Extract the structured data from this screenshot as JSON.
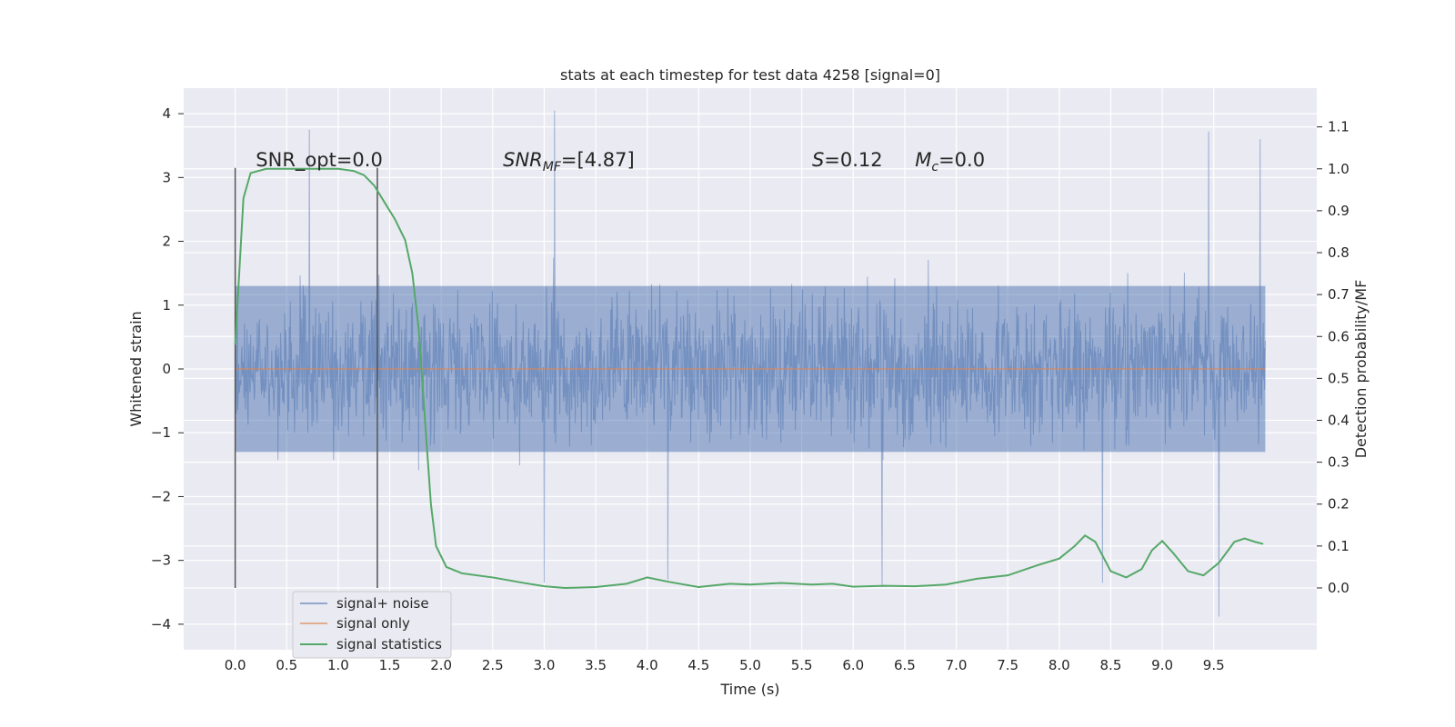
{
  "chart_data": {
    "type": "line",
    "title": "stats at each timestep for test data 4258 [signal=0]",
    "xlabel": "Time (s)",
    "ylabel_left": "Whitened strain",
    "ylabel_right": "Detection probability/MF",
    "xlim": [
      -0.5,
      10.5
    ],
    "ylim_left": [
      -4.4,
      4.4
    ],
    "ylim_right": [
      -0.1475,
      1.1925
    ],
    "x_ticks": [
      0.0,
      0.5,
      1.0,
      1.5,
      2.0,
      2.5,
      3.0,
      3.5,
      4.0,
      4.5,
      5.0,
      5.5,
      6.0,
      6.5,
      7.0,
      7.5,
      8.0,
      8.5,
      9.0,
      9.5
    ],
    "x_tick_labels": [
      "0.0",
      "0.5",
      "1.0",
      "1.5",
      "2.0",
      "2.5",
      "3.0",
      "3.5",
      "4.0",
      "4.5",
      "5.0",
      "5.5",
      "6.0",
      "6.5",
      "7.0",
      "7.5",
      "8.0",
      "8.5",
      "9.0",
      "9.5"
    ],
    "y_ticks_left": [
      4,
      3,
      2,
      1,
      0,
      -1,
      -2,
      -3,
      -4
    ],
    "y_tick_labels_left": [
      "4",
      "3",
      "2",
      "1",
      "0",
      "−1",
      "−2",
      "−3",
      "−4"
    ],
    "y_ticks_right": [
      1.1,
      1.0,
      0.9,
      0.8,
      0.7,
      0.6,
      0.5,
      0.4,
      0.3,
      0.2,
      0.1,
      0.0
    ],
    "y_tick_labels_right": [
      "1.1",
      "1.0",
      "0.9",
      "0.8",
      "0.7",
      "0.6",
      "0.5",
      "0.4",
      "0.3",
      "0.2",
      "0.1",
      "0.0"
    ],
    "grid": true,
    "legend_position": "lower-left",
    "series": [
      {
        "name": "signal+ noise",
        "color": "#4c72b0",
        "noise_duration": 10.0,
        "noise_bulk_range": [
          -1.3,
          1.3
        ],
        "notable_peaks": [
          {
            "x": 3.1,
            "y": 4.05
          },
          {
            "x": 9.45,
            "y": 3.72
          },
          {
            "x": 9.95,
            "y": 3.6
          },
          {
            "x": 0.72,
            "y": 3.75
          },
          {
            "x": 9.55,
            "y": -3.88
          },
          {
            "x": 6.28,
            "y": -3.42
          },
          {
            "x": 3.0,
            "y": -3.35
          },
          {
            "x": 8.42,
            "y": -3.35
          },
          {
            "x": 4.2,
            "y": -3.3
          }
        ]
      },
      {
        "name": "signal only",
        "color": "#dd8452",
        "x": [
          0.0,
          10.0
        ],
        "y": [
          0.0,
          0.0
        ]
      },
      {
        "name": "signal statistics",
        "color": "#55a868",
        "axis": "right",
        "x": [
          0.0,
          0.08,
          0.15,
          0.3,
          0.5,
          0.8,
          1.0,
          1.15,
          1.25,
          1.35,
          1.45,
          1.55,
          1.65,
          1.72,
          1.78,
          1.82,
          1.86,
          1.9,
          1.95,
          2.05,
          2.2,
          2.5,
          2.8,
          3.0,
          3.2,
          3.5,
          3.8,
          4.0,
          4.2,
          4.5,
          4.8,
          5.0,
          5.3,
          5.6,
          5.8,
          6.0,
          6.3,
          6.6,
          6.9,
          7.2,
          7.5,
          7.8,
          8.0,
          8.15,
          8.25,
          8.35,
          8.5,
          8.65,
          8.8,
          8.9,
          9.0,
          9.1,
          9.25,
          9.4,
          9.55,
          9.7,
          9.8,
          9.9,
          9.98
        ],
        "y": [
          0.58,
          0.93,
          0.99,
          1.0,
          1.0,
          1.0,
          1.0,
          0.995,
          0.985,
          0.96,
          0.92,
          0.88,
          0.83,
          0.75,
          0.62,
          0.48,
          0.34,
          0.2,
          0.1,
          0.05,
          0.035,
          0.025,
          0.012,
          0.004,
          0.0,
          0.002,
          0.01,
          0.025,
          0.015,
          0.002,
          0.01,
          0.008,
          0.012,
          0.008,
          0.01,
          0.003,
          0.005,
          0.004,
          0.008,
          0.022,
          0.03,
          0.055,
          0.07,
          0.1,
          0.125,
          0.11,
          0.04,
          0.025,
          0.045,
          0.09,
          0.112,
          0.085,
          0.04,
          0.03,
          0.06,
          0.11,
          0.118,
          0.11,
          0.105
        ]
      }
    ],
    "vertical_lines": [
      0.0,
      1.38
    ],
    "annotations": [
      {
        "text": "SNR_opt=0.0",
        "x": 0.2
      },
      {
        "sym": "SNR",
        "sub": "MF",
        "val": "=[4.87]",
        "x": 2.6
      },
      {
        "sym": "S",
        "val": "=0.12",
        "x": 5.6
      },
      {
        "sym": "M",
        "sub": "c",
        "val": "=0.0",
        "x": 6.6
      }
    ]
  }
}
